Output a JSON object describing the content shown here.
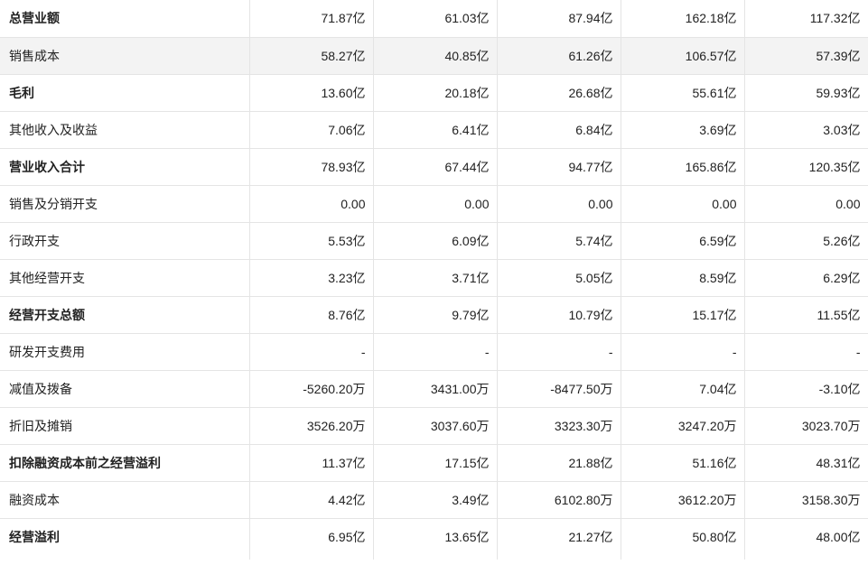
{
  "table": {
    "rows": [
      {
        "label": "总营业额",
        "values": [
          "71.87亿",
          "61.03亿",
          "87.94亿",
          "162.18亿",
          "117.32亿"
        ]
      },
      {
        "label": "销售成本",
        "values": [
          "58.27亿",
          "40.85亿",
          "61.26亿",
          "106.57亿",
          "57.39亿"
        ]
      },
      {
        "label": "毛利",
        "values": [
          "13.60亿",
          "20.18亿",
          "26.68亿",
          "55.61亿",
          "59.93亿"
        ]
      },
      {
        "label": "其他收入及收益",
        "values": [
          "7.06亿",
          "6.41亿",
          "6.84亿",
          "3.69亿",
          "3.03亿"
        ]
      },
      {
        "label": "营业收入合计",
        "values": [
          "78.93亿",
          "67.44亿",
          "94.77亿",
          "165.86亿",
          "120.35亿"
        ]
      },
      {
        "label": "销售及分销开支",
        "values": [
          "0.00",
          "0.00",
          "0.00",
          "0.00",
          "0.00"
        ]
      },
      {
        "label": "行政开支",
        "values": [
          "5.53亿",
          "6.09亿",
          "5.74亿",
          "6.59亿",
          "5.26亿"
        ]
      },
      {
        "label": "其他经营开支",
        "values": [
          "3.23亿",
          "3.71亿",
          "5.05亿",
          "8.59亿",
          "6.29亿"
        ]
      },
      {
        "label": "经营开支总额",
        "values": [
          "8.76亿",
          "9.79亿",
          "10.79亿",
          "15.17亿",
          "11.55亿"
        ]
      },
      {
        "label": "研发开支费用",
        "values": [
          "-",
          "-",
          "-",
          "-",
          "-"
        ]
      },
      {
        "label": "减值及拨备",
        "values": [
          "-5260.20万",
          "3431.00万",
          "-8477.50万",
          "7.04亿",
          "-3.10亿"
        ]
      },
      {
        "label": "折旧及摊销",
        "values": [
          "3526.20万",
          "3037.60万",
          "3323.30万",
          "3247.20万",
          "3023.70万"
        ]
      },
      {
        "label": "扣除融资成本前之经营溢利",
        "values": [
          "11.37亿",
          "17.15亿",
          "21.88亿",
          "51.16亿",
          "48.31亿"
        ]
      },
      {
        "label": "融资成本",
        "values": [
          "4.42亿",
          "3.49亿",
          "6102.80万",
          "3612.20万",
          "3158.30万"
        ]
      },
      {
        "label": "经营溢利",
        "values": [
          "6.95亿",
          "13.65亿",
          "21.27亿",
          "50.80亿",
          "48.00亿"
        ]
      }
    ]
  }
}
